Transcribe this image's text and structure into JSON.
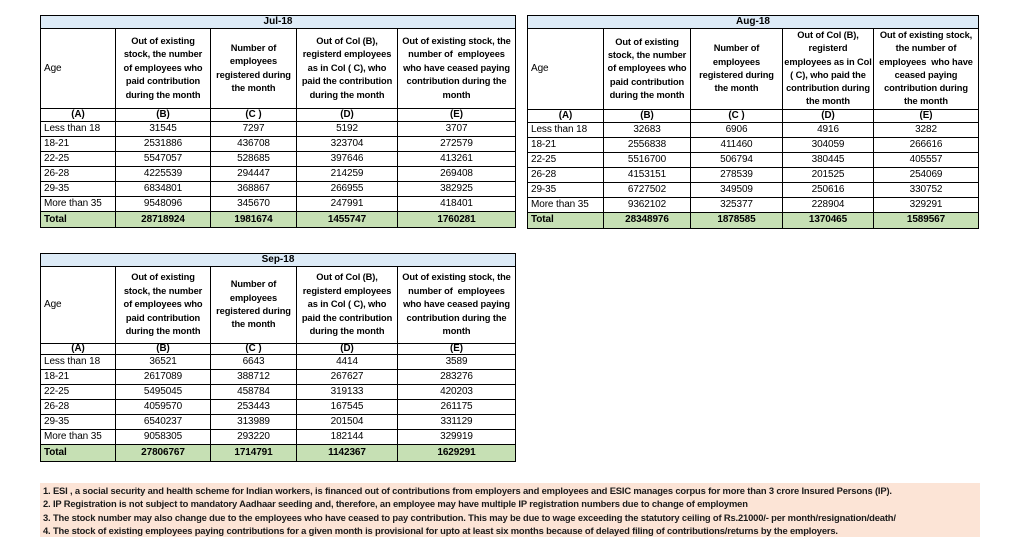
{
  "colors": {
    "title_bg": "#DDEBF7",
    "total_bg": "#C6E0B4",
    "notes_bg": "#FCE4D6",
    "border": "#000000",
    "text": "#000000"
  },
  "tables": [
    {
      "title": "Jul-18",
      "headers": [
        "Age",
        "Out of existing\nstock, the number\nof employees who\npaid contribution\nduring the month",
        "Number of\nemployees\nregistered during\nthe month",
        "Out of Col (B),\nregisterd employees\nas in Col ( C), who\npaid the contribution\nduring the month",
        "Out of existing stock, the\nnumber of  employees\nwho have ceased paying\ncontribution during the\nmonth"
      ],
      "subheaders": [
        "(A)",
        "(B)",
        "(C )",
        "(D)",
        "(E)"
      ],
      "rows": [
        [
          "Less than 18",
          "31545",
          "7297",
          "5192",
          "3707"
        ],
        [
          "18-21",
          "2531886",
          "436708",
          "323704",
          "272579"
        ],
        [
          "22-25",
          "5547057",
          "528685",
          "397646",
          "413261"
        ],
        [
          "26-28",
          "4225539",
          "294447",
          "214259",
          "269408"
        ],
        [
          "29-35",
          "6834801",
          "368867",
          "266955",
          "382925"
        ],
        [
          "More than 35",
          "9548096",
          "345670",
          "247991",
          "418401"
        ]
      ],
      "total": [
        "Total",
        "28718924",
        "1981674",
        "1455747",
        "1760281"
      ]
    },
    {
      "title": "Aug-18",
      "headers": [
        "Age",
        "Out of existing\nstock, the number\nof employees who\npaid contribution\nduring the month",
        "Number of\nemployees\nregistered during\nthe month",
        "Out of Col (B),\nregisterd\nemployees as in Col\n( C), who paid the\ncontribution during\nthe month",
        "Out of existing stock,\nthe number of\nemployees  who have\nceased paying\ncontribution during\nthe month"
      ],
      "subheaders": [
        "(A)",
        "(B)",
        "(C )",
        "(D)",
        "(E)"
      ],
      "rows": [
        [
          "Less than 18",
          "32683",
          "6906",
          "4916",
          "3282"
        ],
        [
          "18-21",
          "2556838",
          "411460",
          "304059",
          "266616"
        ],
        [
          "22-25",
          "5516700",
          "506794",
          "380445",
          "405557"
        ],
        [
          "26-28",
          "4153151",
          "278539",
          "201525",
          "254069"
        ],
        [
          "29-35",
          "6727502",
          "349509",
          "250616",
          "330752"
        ],
        [
          "More than 35",
          "9362102",
          "325377",
          "228904",
          "329291"
        ]
      ],
      "total": [
        "Total",
        "28348976",
        "1878585",
        "1370465",
        "1589567"
      ]
    },
    {
      "title": "Sep-18",
      "headers": [
        "Age",
        "Out of existing\nstock, the number\nof employees who\npaid contribution\nduring the month",
        "Number of\nemployees\nregistered during\nthe month",
        "Out of Col (B),\nregisterd employees\nas in Col ( C), who\npaid the contribution\nduring the month",
        "Out of existing stock, the\nnumber of  employees\nwho have ceased paying\ncontribution during the\nmonth"
      ],
      "subheaders": [
        "(A)",
        "(B)",
        "(C )",
        "(D)",
        "(E)"
      ],
      "rows": [
        [
          "Less than 18",
          "36521",
          "6643",
          "4414",
          "3589"
        ],
        [
          "18-21",
          "2617089",
          "388712",
          "267627",
          "283276"
        ],
        [
          "22-25",
          "5495045",
          "458784",
          "319133",
          "420203"
        ],
        [
          "26-28",
          "4059570",
          "253443",
          "167545",
          "261175"
        ],
        [
          "29-35",
          "6540237",
          "313989",
          "201504",
          "331129"
        ],
        [
          "More than 35",
          "9058305",
          "293220",
          "182144",
          "329919"
        ]
      ],
      "total": [
        "Total",
        "27806767",
        "1714791",
        "1142367",
        "1629291"
      ]
    }
  ],
  "footnotes": [
    "1. ESI , a social security and health scheme for Indian workers, is financed out of contributions from employers and employees and ESIC manages corpus for more than 3 crore Insured Persons (IP).",
    "2. IP Registration is not subject to mandatory Aadhaar seeding and, therefore, an employee may have multiple IP registration numbers due to change of employmen",
    "3. The stock number may also change due to the employees who have ceased to pay contribution. This may  be due to wage exceeding the statutory ceiling of  Rs.21000/- per month/resignation/death/",
    "4. The stock of existing employees paying contributions for a given month is provisional for upto at least six months because of delayed filing of contributions/returns by the employers."
  ]
}
